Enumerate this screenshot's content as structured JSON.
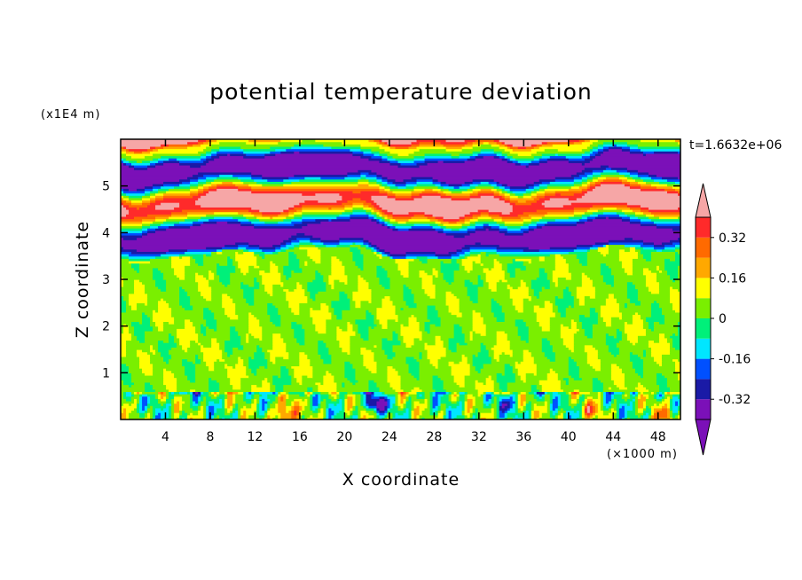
{
  "chart_data": {
    "type": "heatmap",
    "title": "potential temperature deviation",
    "xlabel": "X coordinate",
    "ylabel": "Z coordinate",
    "x_unit": "(×1000 m)",
    "y_unit": "(x1E4 m)",
    "time_label": "t=1.6632e+06",
    "xlim": [
      0,
      50
    ],
    "ylim": [
      0,
      6
    ],
    "x_ticks": [
      4,
      8,
      12,
      16,
      20,
      24,
      28,
      32,
      36,
      40,
      44,
      48
    ],
    "y_ticks": [
      1,
      2,
      3,
      4,
      5
    ],
    "colorbar": {
      "levels": [
        -0.4,
        -0.32,
        -0.24,
        -0.16,
        -0.08,
        0,
        0.08,
        0.16,
        0.24,
        0.32,
        0.4
      ],
      "colors": [
        "#7b10b8",
        "#1a1aa6",
        "#0050ff",
        "#00e6ff",
        "#00f07a",
        "#7aef00",
        "#ffff00",
        "#ffa800",
        "#ff6a00",
        "#ff2a2a",
        "#f6a6a6"
      ],
      "labels": [
        "0.32",
        "0.16",
        "0",
        "-0.16",
        "-0.32"
      ],
      "label_values": [
        0.32,
        0.16,
        0,
        -0.16,
        -0.32
      ],
      "extend": "both"
    }
  }
}
